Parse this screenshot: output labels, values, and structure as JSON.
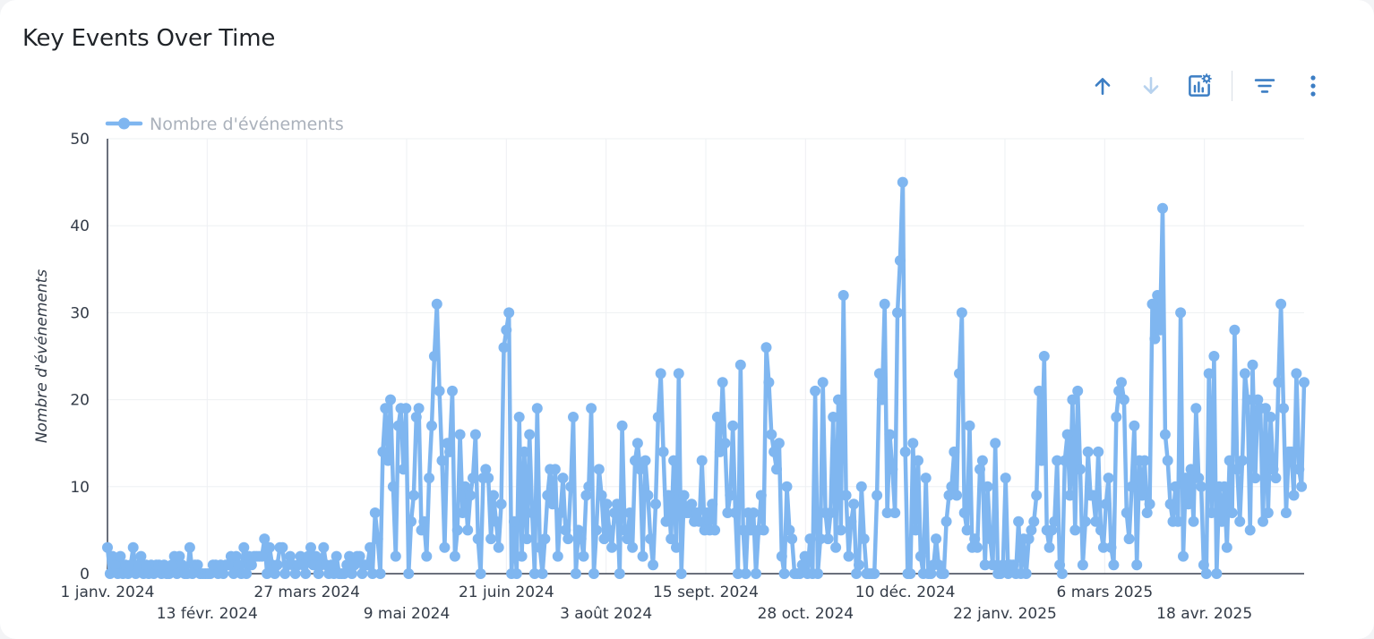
{
  "title": "Key Events Over Time",
  "toolbar": {
    "icons": [
      "arrow-up-icon",
      "arrow-down-icon",
      "chart-settings-icon",
      "filter-icon",
      "more-vertical-icon"
    ]
  },
  "colors": {
    "series": "#7fb6f0",
    "accent": "#3c7ec4",
    "disabled": "#b7d2ee",
    "axis": "#3a4150"
  },
  "chart_data": {
    "type": "line",
    "title": "Key Events Over Time",
    "ylabel": "Nombre d'événements",
    "xlabel": "",
    "ylim": [
      0,
      50
    ],
    "y_ticks": [
      "0",
      "10",
      "20",
      "30",
      "40",
      "50"
    ],
    "x_ticks": [
      "1 janv. 2024",
      "13 févr. 2024",
      "27 mars 2024",
      "9 mai 2024",
      "21 juin 2024",
      "3 août 2024",
      "15 sept. 2024",
      "28 oct. 2024",
      "10 déc. 2024",
      "22 janv. 2025",
      "6 mars 2025",
      "18 avr. 2025"
    ],
    "legend": "top-left",
    "grid": true,
    "series": [
      {
        "name": "Nombre d'événements",
        "color": "#7fb6f0",
        "x_start": "2024-01-01",
        "x_end": "2025-05-31",
        "values": [
          3,
          0,
          2,
          1,
          0,
          2,
          0,
          1,
          0,
          1,
          3,
          0,
          1,
          2,
          0,
          1,
          0,
          1,
          0,
          1,
          1,
          0,
          1,
          0,
          0,
          1,
          2,
          0,
          2,
          1,
          0,
          0,
          3,
          0,
          1,
          1,
          0,
          0,
          0,
          0,
          0,
          1,
          1,
          0,
          1,
          0,
          1,
          1,
          2,
          0,
          2,
          1,
          0,
          3,
          0,
          2,
          1,
          2,
          2,
          2,
          2,
          4,
          0,
          3,
          1,
          0,
          1,
          3,
          3,
          0,
          1,
          2,
          1,
          0,
          1,
          2,
          1,
          0,
          2,
          3,
          1,
          2,
          0,
          1,
          3,
          1,
          0,
          1,
          0,
          2,
          0,
          0,
          0,
          1,
          2,
          0,
          1,
          2,
          2,
          0,
          1,
          1,
          3,
          0,
          7,
          4,
          0,
          14,
          19,
          13,
          20,
          10,
          2,
          17,
          19,
          12,
          19,
          0,
          6,
          9,
          18,
          19,
          5,
          6,
          2,
          11,
          17,
          25,
          31,
          21,
          13,
          3,
          15,
          14,
          21,
          2,
          5,
          16,
          7,
          10,
          5,
          9,
          11,
          16,
          4,
          0,
          11,
          12,
          11,
          4,
          9,
          6,
          3,
          8,
          26,
          28,
          30,
          0,
          6,
          0,
          18,
          2,
          14,
          4,
          16,
          7,
          0,
          19,
          3,
          0,
          4,
          9,
          12,
          8,
          12,
          2,
          7,
          11,
          5,
          4,
          10,
          18,
          0,
          5,
          4,
          2,
          9,
          10,
          19,
          0,
          5,
          12,
          9,
          4,
          8,
          5,
          3,
          7,
          8,
          0,
          17,
          5,
          4,
          7,
          3,
          13,
          15,
          12,
          2,
          13,
          9,
          4,
          1,
          8,
          18,
          23,
          14,
          6,
          9,
          4,
          13,
          3,
          23,
          0,
          9,
          7,
          7,
          8,
          6,
          7,
          6,
          13,
          5,
          7,
          5,
          8,
          5,
          18,
          14,
          22,
          15,
          7,
          9,
          17,
          7,
          0,
          24,
          5,
          0,
          7,
          5,
          7,
          0,
          5,
          9,
          5,
          26,
          22,
          16,
          14,
          12,
          15,
          2,
          0,
          10,
          5,
          4,
          0,
          0,
          0,
          1,
          2,
          0,
          4,
          0,
          21,
          0,
          4,
          22,
          7,
          4,
          7,
          18,
          3,
          20,
          5,
          32,
          9,
          2,
          6,
          8,
          0,
          1,
          10,
          4,
          0,
          0,
          0,
          0,
          9,
          23,
          20,
          31,
          7,
          16,
          12,
          7,
          30,
          36,
          45,
          14,
          0,
          0,
          15,
          5,
          13,
          2,
          0,
          11,
          0,
          0,
          1,
          4,
          1,
          0,
          0,
          6,
          9,
          10,
          14,
          9,
          23,
          30,
          7,
          5,
          17,
          3,
          4,
          3,
          12,
          13,
          1,
          10,
          4,
          1,
          15,
          0,
          0,
          1,
          11,
          0,
          1,
          1,
          0,
          6,
          0,
          4,
          0,
          4,
          5,
          6,
          9,
          21,
          13,
          25,
          5,
          3,
          5,
          6,
          13,
          1,
          0,
          13,
          16,
          9,
          20,
          5,
          21,
          12,
          1,
          6,
          14,
          9,
          9,
          6,
          14,
          5,
          3,
          8,
          11,
          3,
          1,
          18,
          21,
          22,
          20,
          7,
          4,
          10,
          17,
          1,
          13,
          9,
          13,
          7,
          8,
          31,
          27,
          32,
          28,
          42,
          16,
          13,
          8,
          6,
          10,
          6,
          30,
          2,
          11,
          8,
          12,
          6,
          19,
          11,
          10,
          1,
          0,
          23,
          7,
          25,
          0,
          10,
          6,
          10,
          3,
          13,
          7,
          28,
          12,
          6,
          13,
          23,
          20,
          5,
          24,
          11,
          20,
          19,
          6,
          19,
          7,
          18,
          12,
          11,
          22,
          31,
          19,
          7,
          14,
          14,
          9,
          23,
          12,
          10,
          22
        ]
      }
    ]
  }
}
